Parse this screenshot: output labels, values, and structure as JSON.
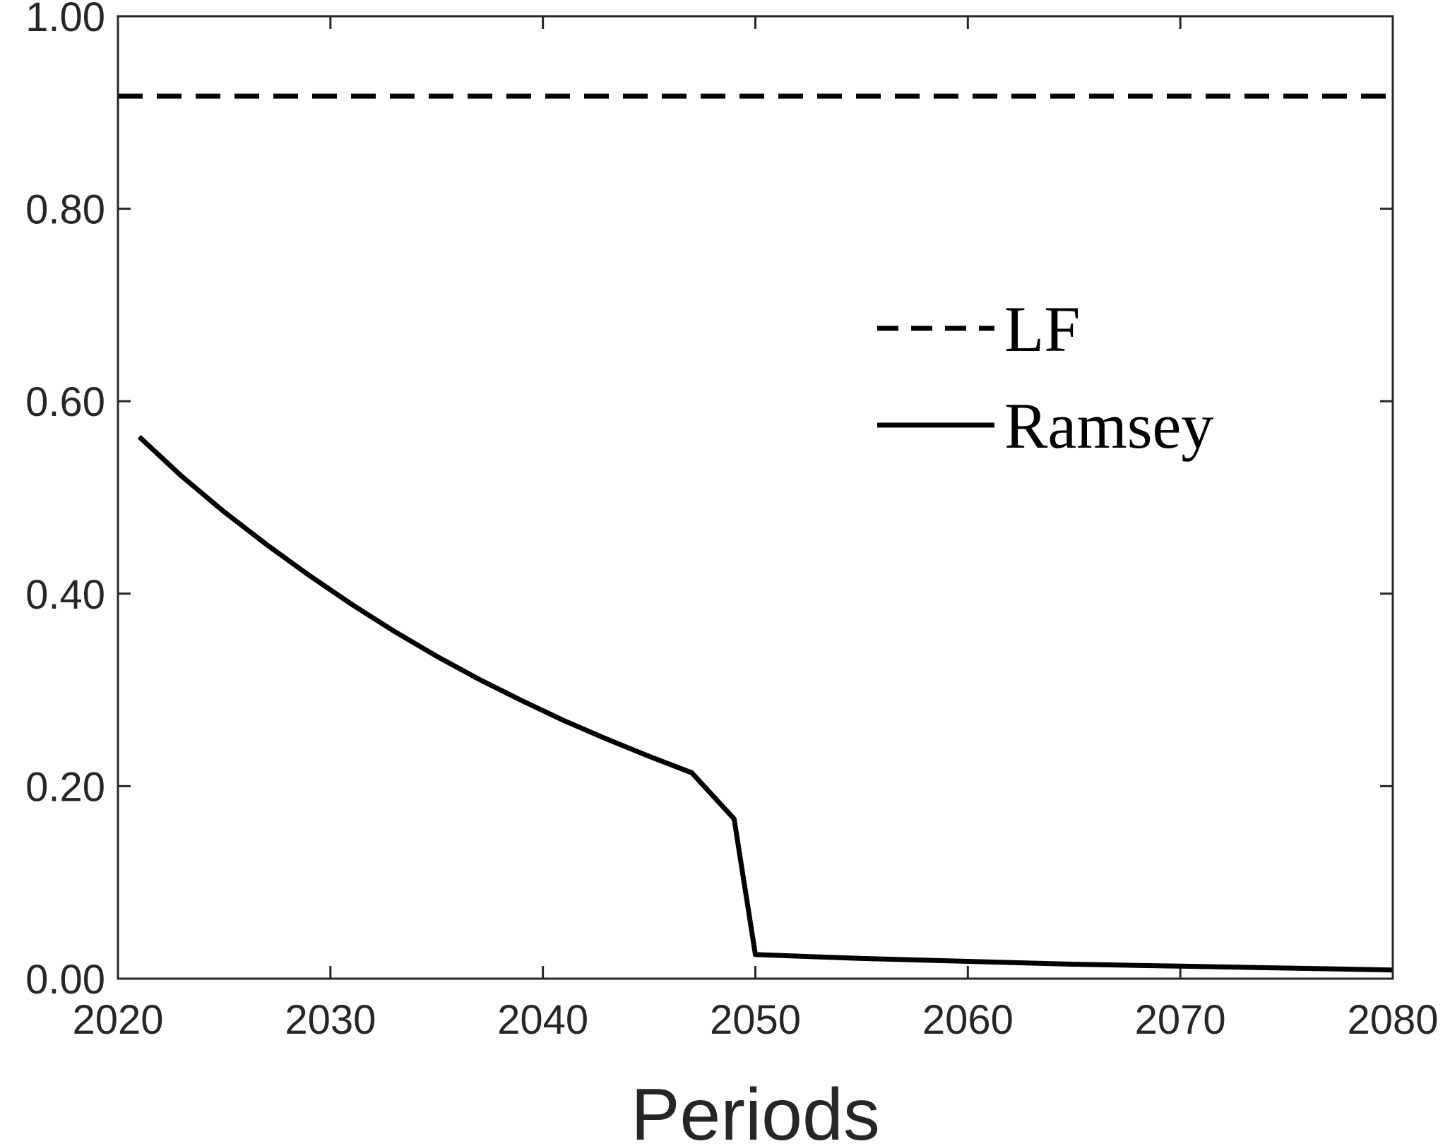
{
  "chart_data": {
    "type": "line",
    "xlabel": "Periods",
    "ylabel": "",
    "xlim": [
      2020,
      2080
    ],
    "ylim": [
      0,
      1
    ],
    "xticks": [
      2020,
      2030,
      2040,
      2050,
      2060,
      2070,
      2080
    ],
    "xtick_labels": [
      "2020",
      "2030",
      "2040",
      "2050",
      "2060",
      "2070",
      "2080"
    ],
    "yticks": [
      0,
      0.2,
      0.4,
      0.6,
      0.8,
      1.0
    ],
    "ytick_labels": [
      "0.00",
      "0.20",
      "0.40",
      "0.60",
      "0.80",
      "1.00"
    ],
    "grid": false,
    "legend_position": "center-right",
    "series": [
      {
        "name": "LF",
        "style": "dashed",
        "color": "#000000",
        "x": [
          2020,
          2080
        ],
        "y": [
          0.917,
          0.917
        ]
      },
      {
        "name": "Ramsey",
        "style": "solid",
        "color": "#000000",
        "x": [
          2021,
          2023,
          2025,
          2027,
          2029,
          2031,
          2033,
          2035,
          2037,
          2039,
          2041,
          2043,
          2045,
          2047,
          2049,
          2050,
          2055,
          2060,
          2065,
          2070,
          2075,
          2080
        ],
        "y": [
          0.563,
          0.522,
          0.485,
          0.451,
          0.419,
          0.389,
          0.361,
          0.335,
          0.311,
          0.289,
          0.268,
          0.249,
          0.231,
          0.214,
          0.166,
          0.025,
          0.021,
          0.018,
          0.015,
          0.013,
          0.011,
          0.009
        ]
      }
    ]
  }
}
